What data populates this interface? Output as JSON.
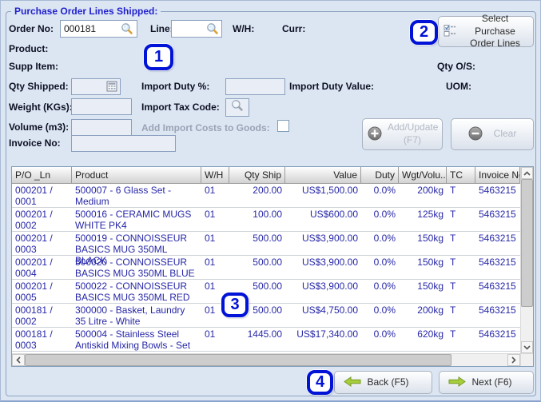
{
  "window": {
    "title": "Purchase Order Lines Shipped:"
  },
  "form": {
    "order_no": {
      "label": "Order No:",
      "value": "000181"
    },
    "line": {
      "label": "Line:",
      "value": ""
    },
    "wh": {
      "label": "W/H:",
      "value": ""
    },
    "curr": {
      "label": "Curr:",
      "value": ""
    },
    "product": {
      "label": "Product:",
      "value": ""
    },
    "supp_item": {
      "label": "Supp Item:",
      "value": ""
    },
    "qty_os": {
      "label": "Qty O/S:",
      "value": ""
    },
    "qty_shipped": {
      "label": "Qty Shipped:",
      "value": ""
    },
    "import_duty_pct": {
      "label": "Import Duty %:",
      "value": ""
    },
    "import_duty_value": {
      "label": "Import Duty Value:",
      "value": ""
    },
    "uom": {
      "label": "UOM:",
      "value": ""
    },
    "weight": {
      "label": "Weight (KGs):",
      "value": ""
    },
    "import_tax_code": {
      "label": "Import Tax Code:"
    },
    "volume": {
      "label": "Volume (m3):",
      "value": ""
    },
    "add_import_costs": {
      "label": "Add Import Costs to Goods:",
      "checked": false
    },
    "invoice_no": {
      "label": "Invoice No:",
      "value": ""
    }
  },
  "buttons": {
    "select_po_lines": "Select Purchase Order Lines",
    "add_update": "Add/Update (F7)",
    "clear": "Clear",
    "back": "Back (F5)",
    "next": "Next (F6)"
  },
  "table": {
    "columns": [
      "P/O _Ln",
      "Product",
      "W/H",
      "Qty Ship",
      "Value",
      "Duty",
      "Wgt/Volu...",
      "TC",
      "Invoice No"
    ],
    "rows": [
      [
        "000201 / 0001",
        "500007 - 6 Glass Set - Medium",
        "01",
        "200.00",
        "US$1,500.00",
        "0.0%",
        "200kg",
        "T",
        "5463215"
      ],
      [
        "000201 / 0002",
        "500016 - CERAMIC MUGS WHITE PK4",
        "01",
        "100.00",
        "US$600.00",
        "0.0%",
        "125kg",
        "T",
        "5463215"
      ],
      [
        "000201 / 0003",
        "500019 - CONNOISSEUR BASICS MUG 350ML BLACK",
        "01",
        "500.00",
        "US$3,900.00",
        "0.0%",
        "150kg",
        "T",
        "5463215"
      ],
      [
        "000201 / 0004",
        "500020 - CONNOISSEUR BASICS MUG 350ML BLUE",
        "01",
        "500.00",
        "US$3,900.00",
        "0.0%",
        "150kg",
        "T",
        "5463215"
      ],
      [
        "000201 / 0005",
        "500022 - CONNOISSEUR BASICS MUG 350ML RED",
        "01",
        "500.00",
        "US$3,900.00",
        "0.0%",
        "150kg",
        "T",
        "5463215"
      ],
      [
        "000181 / 0002",
        "300000 - Basket, Laundry 35 Litre - White",
        "01",
        "500.00",
        "US$4,750.00",
        "0.0%",
        "200kg",
        "T",
        "5463215"
      ],
      [
        "000181 / 0003",
        "500004 - Stainless Steel Antiskid Mixing Bowls - Set",
        "01",
        "1445.00",
        "US$17,340.00",
        "0.0%",
        "620kg",
        "T",
        "5463215"
      ]
    ]
  },
  "annotations": {
    "badge1": "1",
    "badge2": "2",
    "badge3": "3",
    "badge4": "4"
  },
  "icons": {
    "search-icon": "magnifier with gold handle",
    "calculator-icon": "small grid calculator",
    "select-lines-icon": "checkbox list",
    "add-circle-icon": "+",
    "remove-circle-icon": "−",
    "back-arrow-icon": "←",
    "next-arrow-icon": "→",
    "scroll-arrows": "‹ › ˄ ˅"
  },
  "colors": {
    "panel": "#dce6f3",
    "group_title": "#2121cc",
    "annotation_blue": "#0013d6",
    "table_text": "#2727a8",
    "disabled_text": "#9aa3b4",
    "arrow_green": "#a6ce39"
  }
}
